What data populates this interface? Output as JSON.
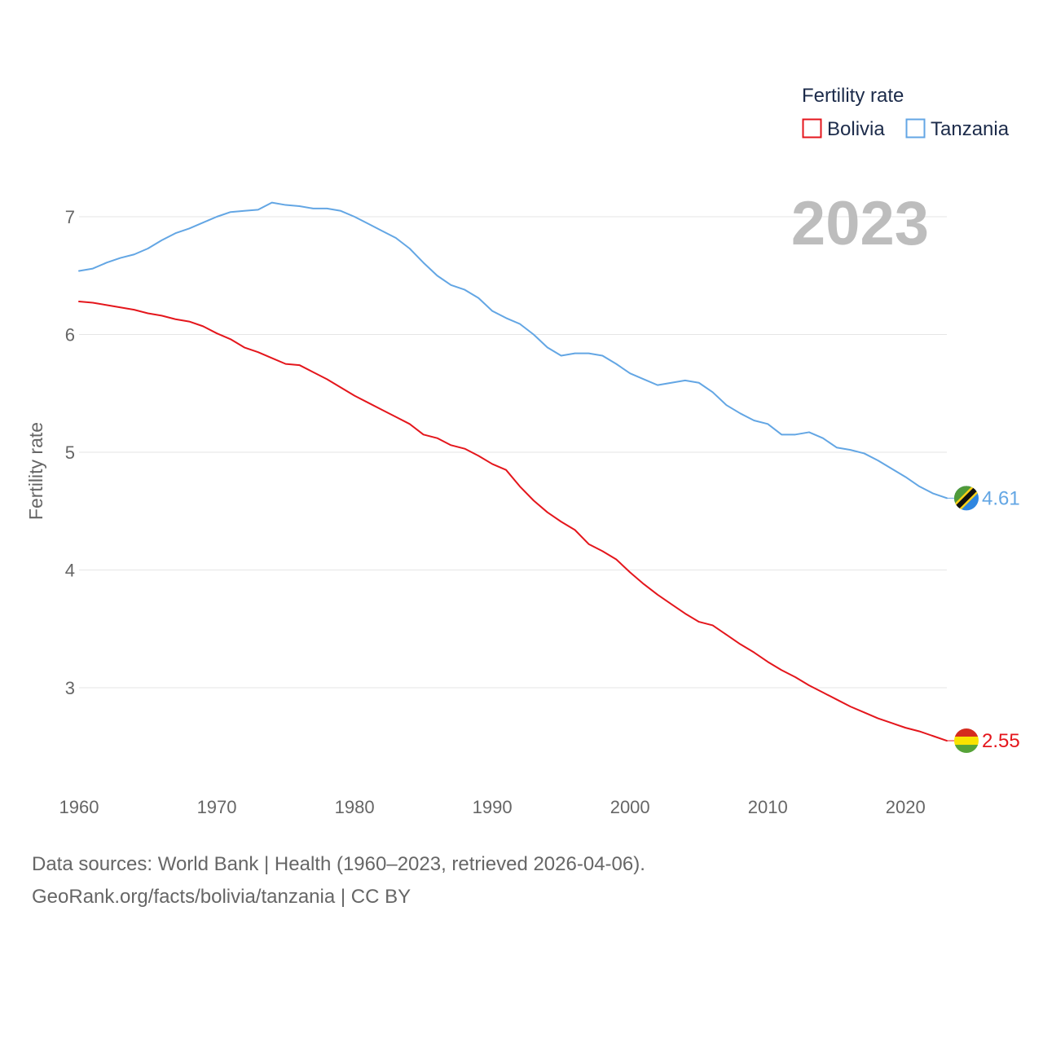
{
  "chart_data": {
    "type": "line",
    "title": "",
    "xlabel": "",
    "ylabel": "Fertility rate",
    "annotation": "2023",
    "xlim": [
      1960,
      2023
    ],
    "ylim": [
      2.4,
      7.3
    ],
    "grid": true,
    "x_ticks": [
      1960,
      1970,
      1980,
      1990,
      2000,
      2010,
      2020
    ],
    "y_ticks": [
      3,
      4,
      5,
      6,
      7
    ],
    "legend": {
      "title": "Fertility rate",
      "position": "top-right"
    },
    "x": [
      1960,
      1961,
      1962,
      1963,
      1964,
      1965,
      1966,
      1967,
      1968,
      1969,
      1970,
      1971,
      1972,
      1973,
      1974,
      1975,
      1976,
      1977,
      1978,
      1979,
      1980,
      1981,
      1982,
      1983,
      1984,
      1985,
      1986,
      1987,
      1988,
      1989,
      1990,
      1991,
      1992,
      1993,
      1994,
      1995,
      1996,
      1997,
      1998,
      1999,
      2000,
      2001,
      2002,
      2003,
      2004,
      2005,
      2006,
      2007,
      2008,
      2009,
      2010,
      2011,
      2012,
      2013,
      2014,
      2015,
      2016,
      2017,
      2018,
      2019,
      2020,
      2021,
      2022,
      2023
    ],
    "series": [
      {
        "name": "Bolivia",
        "color": "#e4161c",
        "end_label": "2.55",
        "values": [
          6.28,
          6.27,
          6.25,
          6.23,
          6.21,
          6.18,
          6.16,
          6.13,
          6.11,
          6.07,
          6.01,
          5.96,
          5.89,
          5.85,
          5.8,
          5.75,
          5.74,
          5.68,
          5.62,
          5.55,
          5.48,
          5.42,
          5.36,
          5.3,
          5.24,
          5.15,
          5.12,
          5.06,
          5.03,
          4.97,
          4.9,
          4.85,
          4.71,
          4.59,
          4.49,
          4.41,
          4.34,
          4.22,
          4.16,
          4.09,
          3.98,
          3.88,
          3.79,
          3.71,
          3.63,
          3.56,
          3.53,
          3.45,
          3.37,
          3.3,
          3.22,
          3.15,
          3.09,
          3.02,
          2.96,
          2.9,
          2.84,
          2.79,
          2.74,
          2.7,
          2.66,
          2.63,
          2.59,
          2.55
        ]
      },
      {
        "name": "Tanzania",
        "color": "#63a6e4",
        "end_label": "4.61",
        "values": [
          6.54,
          6.56,
          6.61,
          6.65,
          6.68,
          6.73,
          6.8,
          6.86,
          6.9,
          6.95,
          7.0,
          7.04,
          7.05,
          7.06,
          7.12,
          7.1,
          7.09,
          7.07,
          7.07,
          7.05,
          7.0,
          6.94,
          6.88,
          6.82,
          6.73,
          6.61,
          6.5,
          6.42,
          6.38,
          6.31,
          6.2,
          6.14,
          6.09,
          6.0,
          5.89,
          5.82,
          5.84,
          5.84,
          5.82,
          5.75,
          5.67,
          5.62,
          5.57,
          5.59,
          5.61,
          5.59,
          5.51,
          5.4,
          5.33,
          5.27,
          5.24,
          5.15,
          5.15,
          5.17,
          5.12,
          5.04,
          5.02,
          4.99,
          4.93,
          4.86,
          4.79,
          4.71,
          4.65,
          4.61
        ]
      }
    ]
  },
  "footer": {
    "source": "Data sources: World Bank | Health (1960–2023, retrieved 2026-04-06).",
    "credit": "GeoRank.org/facts/bolivia/tanzania | CC BY"
  }
}
